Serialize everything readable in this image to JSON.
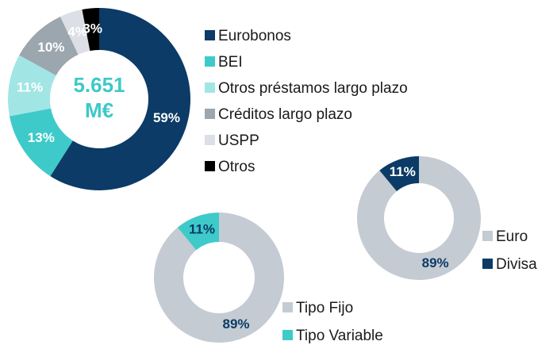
{
  "chart_data": [
    {
      "type": "pie",
      "donut": true,
      "center_text": [
        "5.651",
        "M€"
      ],
      "center_color": "#3ec8c8",
      "categories": [
        "Eurobonos",
        "BEI",
        "Otros préstamos largo plazo",
        "Créditos largo plazo",
        "USPP",
        "Otros"
      ],
      "values": [
        59,
        13,
        11,
        10,
        4,
        3
      ],
      "value_labels": [
        "59%",
        "13%",
        "11%",
        "10%",
        "4%",
        "3%"
      ],
      "colors": [
        "#0b3b66",
        "#3fcaca",
        "#a2e5e5",
        "#9ca6af",
        "#dcdfe5",
        "#000000"
      ],
      "label_colors": [
        "#ffffff",
        "#ffffff",
        "#ffffff",
        "#ffffff",
        "#ffffff",
        "#ffffff"
      ]
    },
    {
      "type": "pie",
      "donut": true,
      "categories": [
        "Euro",
        "Divisa"
      ],
      "values": [
        89,
        11
      ],
      "value_labels": [
        "89%",
        "11%"
      ],
      "colors": [
        "#c5cbd3",
        "#0b3b66"
      ],
      "label_colors": [
        "#0b3b66",
        "#ffffff"
      ]
    },
    {
      "type": "pie",
      "donut": true,
      "categories": [
        "Tipo Fijo",
        "Tipo Variable"
      ],
      "values": [
        89,
        11
      ],
      "value_labels": [
        "89%",
        "11%"
      ],
      "colors": [
        "#c5cbd3",
        "#3fcaca"
      ],
      "label_colors": [
        "#0b3b66",
        "#0b3b66"
      ]
    }
  ]
}
